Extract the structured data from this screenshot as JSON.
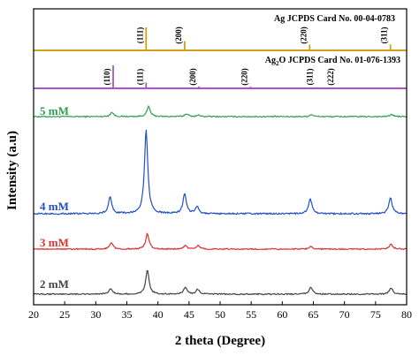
{
  "chart_data": {
    "type": "line",
    "xlabel": "2 theta (Degree)",
    "ylabel": "Intensity (a.u)",
    "xlim": [
      20,
      80
    ],
    "xticks": [
      20,
      25,
      30,
      35,
      40,
      45,
      50,
      55,
      60,
      65,
      70,
      75,
      80
    ],
    "grid": false,
    "reference_cards": [
      {
        "label": "Ag JCPDS Card No. 00-04-0783",
        "color": "#d4a017",
        "peaks": [
          {
            "two_theta": 38.1,
            "hkl": "(111)",
            "intensity": 1.0
          },
          {
            "two_theta": 44.3,
            "hkl": "(200)",
            "intensity": 0.4
          },
          {
            "two_theta": 64.4,
            "hkl": "(220)",
            "intensity": 0.25
          },
          {
            "two_theta": 77.4,
            "hkl": "(311)",
            "intensity": 0.26
          }
        ]
      },
      {
        "label_main": "Ag",
        "label_sub": "2",
        "label_rest": "O JCPDS Card No. 01-076-1393",
        "color": "#b04fd0",
        "peaks": [
          {
            "two_theta": 32.8,
            "hkl": "(110)",
            "intensity": 1.0
          },
          {
            "two_theta": 38.1,
            "hkl": "(111)",
            "intensity": 0.25
          },
          {
            "two_theta": 46.6,
            "hkl": "(200)",
            "intensity": 0.08
          },
          {
            "two_theta": 54.9,
            "hkl": "(220)",
            "intensity": 0.07
          },
          {
            "two_theta": 65.4,
            "hkl": "(311)",
            "intensity": 0.05
          },
          {
            "two_theta": 68.8,
            "hkl": "(222)",
            "intensity": 0.02
          }
        ]
      }
    ],
    "series": [
      {
        "name": "5 mM",
        "color": "#2e9e4f",
        "baseline": 0,
        "peaks": [
          {
            "two_theta": 32.6,
            "height": 0.3
          },
          {
            "two_theta": 38.5,
            "height": 0.7
          },
          {
            "two_theta": 44.6,
            "height": 0.2
          },
          {
            "two_theta": 46.5,
            "height": 0.1
          },
          {
            "two_theta": 64.7,
            "height": 0.15
          },
          {
            "two_theta": 77.6,
            "height": 0.15
          }
        ]
      },
      {
        "name": "4 mM",
        "color": "#1f4fc8",
        "baseline": 0,
        "peaks": [
          {
            "two_theta": 32.3,
            "height": 0.9
          },
          {
            "two_theta": 38.1,
            "height": 4.5
          },
          {
            "two_theta": 44.3,
            "height": 1.1
          },
          {
            "two_theta": 46.3,
            "height": 0.4
          },
          {
            "two_theta": 64.5,
            "height": 0.8
          },
          {
            "two_theta": 77.4,
            "height": 0.9
          }
        ]
      },
      {
        "name": "3 mM",
        "color": "#e03030",
        "baseline": 0,
        "peaks": [
          {
            "two_theta": 32.5,
            "height": 0.45
          },
          {
            "two_theta": 38.3,
            "height": 1.1
          },
          {
            "two_theta": 44.4,
            "height": 0.25
          },
          {
            "two_theta": 46.5,
            "height": 0.25
          },
          {
            "two_theta": 64.6,
            "height": 0.2
          },
          {
            "two_theta": 77.5,
            "height": 0.35
          }
        ]
      },
      {
        "name": "2 mM",
        "color": "#444444",
        "baseline": 0,
        "peaks": [
          {
            "two_theta": 32.4,
            "height": 0.4
          },
          {
            "two_theta": 38.3,
            "height": 1.7
          },
          {
            "two_theta": 44.4,
            "height": 0.5
          },
          {
            "two_theta": 46.4,
            "height": 0.35
          },
          {
            "two_theta": 64.6,
            "height": 0.5
          },
          {
            "two_theta": 77.5,
            "height": 0.45
          }
        ]
      }
    ]
  }
}
